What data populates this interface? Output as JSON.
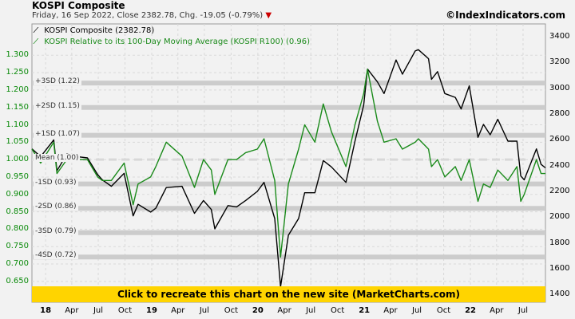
{
  "header": {
    "title": "KOSPI Composite",
    "subtitle": "Friday, 16 Sep 2022, Close 2382.78, Chg. -19.05 (-0.79%)",
    "down_marker": "▼",
    "brand": "©IndexIndicators.com"
  },
  "legend": {
    "item1": "KOSPI Composite (2382.78)",
    "item2": "KOSPI Relative to its 100-Day Moving Average (KOSPI R100) (0.96)"
  },
  "banner": {
    "text": "Click to recreate this chart on the new site (MarketCharts.com)"
  },
  "colors": {
    "kospi": "#000000",
    "ratio": "#1a8a1a",
    "band": "#cccccc",
    "grid": "#d9d9d9",
    "banner": "#ffd400"
  },
  "chart_data": {
    "type": "line",
    "x_range": [
      "2017-11-15",
      "2022-09-16"
    ],
    "x_ticks": [
      {
        "date": "2018-01-01",
        "label": "18",
        "year": true
      },
      {
        "date": "2018-04-01",
        "label": "Apr"
      },
      {
        "date": "2018-07-01",
        "label": "Jul"
      },
      {
        "date": "2018-10-01",
        "label": "Oct"
      },
      {
        "date": "2019-01-01",
        "label": "19",
        "year": true
      },
      {
        "date": "2019-04-01",
        "label": "Apr"
      },
      {
        "date": "2019-07-01",
        "label": "Jul"
      },
      {
        "date": "2019-10-01",
        "label": "Oct"
      },
      {
        "date": "2020-01-01",
        "label": "20",
        "year": true
      },
      {
        "date": "2020-04-01",
        "label": "Apr"
      },
      {
        "date": "2020-07-01",
        "label": "Jul"
      },
      {
        "date": "2020-10-01",
        "label": "Oct"
      },
      {
        "date": "2021-01-01",
        "label": "21",
        "year": true
      },
      {
        "date": "2021-04-01",
        "label": "Apr"
      },
      {
        "date": "2021-07-01",
        "label": "Jul"
      },
      {
        "date": "2021-10-01",
        "label": "Oct"
      },
      {
        "date": "2022-01-01",
        "label": "22",
        "year": true
      },
      {
        "date": "2022-04-01",
        "label": "Apr"
      },
      {
        "date": "2022-07-01",
        "label": "Jul"
      }
    ],
    "left_axis": {
      "ylim": [
        0.59,
        1.39
      ],
      "ticks": [
        "0.650",
        "0.700",
        "0.750",
        "0.800",
        "0.850",
        "0.900",
        "0.950",
        "1.000",
        "1.050",
        "1.100",
        "1.150",
        "1.200",
        "1.250",
        "1.300"
      ]
    },
    "right_axis": {
      "ylim": [
        1340,
        3500
      ],
      "ticks": [
        "1400",
        "1600",
        "1800",
        "2000",
        "2200",
        "2400",
        "2600",
        "2800",
        "3000",
        "3200",
        "3400"
      ]
    },
    "sd_bands": [
      {
        "label": "+3SD (1.22)",
        "value": 1.22
      },
      {
        "label": "+2SD (1.15)",
        "value": 1.15
      },
      {
        "label": "+1SD (1.07)",
        "value": 1.07
      },
      {
        "label": "Mean (1.00)",
        "value": 1.0
      },
      {
        "label": "-1SD (0.93)",
        "value": 0.93
      },
      {
        "label": "-2SD (0.86)",
        "value": 0.86
      },
      {
        "label": "-3SD (0.79)",
        "value": 0.79
      },
      {
        "label": "-4SD (0.72)",
        "value": 0.72
      }
    ],
    "series": [
      {
        "name": "KOSPI Composite (2382.78)",
        "axis": "right",
        "points": [
          [
            "2017-11-15",
            2530
          ],
          [
            "2017-12-15",
            2470
          ],
          [
            "2018-01-29",
            2600
          ],
          [
            "2018-02-09",
            2360
          ],
          [
            "2018-03-15",
            2490
          ],
          [
            "2018-04-20",
            2470
          ],
          [
            "2018-05-25",
            2460
          ],
          [
            "2018-06-29",
            2330
          ],
          [
            "2018-07-15",
            2290
          ],
          [
            "2018-08-15",
            2240
          ],
          [
            "2018-09-28",
            2340
          ],
          [
            "2018-10-29",
            2010
          ],
          [
            "2018-11-15",
            2100
          ],
          [
            "2018-12-28",
            2040
          ],
          [
            "2019-01-15",
            2070
          ],
          [
            "2019-02-20",
            2230
          ],
          [
            "2019-04-15",
            2240
          ],
          [
            "2019-05-28",
            2030
          ],
          [
            "2019-06-28",
            2130
          ],
          [
            "2019-07-25",
            2060
          ],
          [
            "2019-08-06",
            1910
          ],
          [
            "2019-09-20",
            2090
          ],
          [
            "2019-10-20",
            2080
          ],
          [
            "2019-11-20",
            2130
          ],
          [
            "2019-12-30",
            2200
          ],
          [
            "2020-01-22",
            2270
          ],
          [
            "2020-02-28",
            1990
          ],
          [
            "2020-03-19",
            1460
          ],
          [
            "2020-04-15",
            1860
          ],
          [
            "2020-05-20",
            1990
          ],
          [
            "2020-06-10",
            2190
          ],
          [
            "2020-07-15",
            2190
          ],
          [
            "2020-08-13",
            2440
          ],
          [
            "2020-09-10",
            2390
          ],
          [
            "2020-10-30",
            2270
          ],
          [
            "2020-11-30",
            2590
          ],
          [
            "2020-12-30",
            2870
          ],
          [
            "2021-01-12",
            3150
          ],
          [
            "2021-02-15",
            3050
          ],
          [
            "2021-03-10",
            2960
          ],
          [
            "2021-04-20",
            3220
          ],
          [
            "2021-05-12",
            3110
          ],
          [
            "2021-06-25",
            3290
          ],
          [
            "2021-07-06",
            3300
          ],
          [
            "2021-08-10",
            3230
          ],
          [
            "2021-08-20",
            3070
          ],
          [
            "2021-09-10",
            3130
          ],
          [
            "2021-10-05",
            2960
          ],
          [
            "2021-11-10",
            2930
          ],
          [
            "2021-11-30",
            2840
          ],
          [
            "2021-12-28",
            3020
          ],
          [
            "2022-01-27",
            2620
          ],
          [
            "2022-02-15",
            2720
          ],
          [
            "2022-03-10",
            2640
          ],
          [
            "2022-04-05",
            2760
          ],
          [
            "2022-05-10",
            2590
          ],
          [
            "2022-06-10",
            2590
          ],
          [
            "2022-06-23",
            2320
          ],
          [
            "2022-07-05",
            2290
          ],
          [
            "2022-08-16",
            2530
          ],
          [
            "2022-09-01",
            2410
          ],
          [
            "2022-09-16",
            2383
          ]
        ]
      },
      {
        "name": "KOSPI Relative to its 100-Day Moving Average (KOSPI R100) (0.96)",
        "axis": "left",
        "points": [
          [
            "2017-11-15",
            1.03
          ],
          [
            "2017-12-15",
            0.99
          ],
          [
            "2018-01-29",
            1.05
          ],
          [
            "2018-02-09",
            0.96
          ],
          [
            "2018-03-15",
            1.0
          ],
          [
            "2018-04-20",
            1.0
          ],
          [
            "2018-05-25",
            1.0
          ],
          [
            "2018-06-29",
            0.95
          ],
          [
            "2018-07-15",
            0.94
          ],
          [
            "2018-08-15",
            0.94
          ],
          [
            "2018-09-28",
            0.99
          ],
          [
            "2018-10-29",
            0.87
          ],
          [
            "2018-11-15",
            0.93
          ],
          [
            "2018-12-28",
            0.95
          ],
          [
            "2019-01-15",
            0.98
          ],
          [
            "2019-02-20",
            1.05
          ],
          [
            "2019-04-15",
            1.01
          ],
          [
            "2019-05-28",
            0.92
          ],
          [
            "2019-06-28",
            1.0
          ],
          [
            "2019-07-25",
            0.97
          ],
          [
            "2019-08-06",
            0.9
          ],
          [
            "2019-09-20",
            1.0
          ],
          [
            "2019-10-20",
            1.0
          ],
          [
            "2019-11-20",
            1.02
          ],
          [
            "2019-12-30",
            1.03
          ],
          [
            "2020-01-22",
            1.06
          ],
          [
            "2020-02-28",
            0.94
          ],
          [
            "2020-03-19",
            0.72
          ],
          [
            "2020-04-15",
            0.93
          ],
          [
            "2020-05-20",
            1.03
          ],
          [
            "2020-06-10",
            1.1
          ],
          [
            "2020-07-15",
            1.05
          ],
          [
            "2020-08-13",
            1.16
          ],
          [
            "2020-09-10",
            1.08
          ],
          [
            "2020-10-30",
            0.98
          ],
          [
            "2020-11-30",
            1.1
          ],
          [
            "2020-12-30",
            1.19
          ],
          [
            "2021-01-12",
            1.26
          ],
          [
            "2021-02-15",
            1.11
          ],
          [
            "2021-03-10",
            1.05
          ],
          [
            "2021-04-20",
            1.06
          ],
          [
            "2021-05-12",
            1.03
          ],
          [
            "2021-06-25",
            1.05
          ],
          [
            "2021-07-06",
            1.06
          ],
          [
            "2021-08-10",
            1.03
          ],
          [
            "2021-08-20",
            0.98
          ],
          [
            "2021-09-10",
            1.0
          ],
          [
            "2021-10-05",
            0.95
          ],
          [
            "2021-11-10",
            0.98
          ],
          [
            "2021-11-30",
            0.94
          ],
          [
            "2021-12-28",
            1.0
          ],
          [
            "2022-01-27",
            0.88
          ],
          [
            "2022-02-15",
            0.93
          ],
          [
            "2022-03-10",
            0.92
          ],
          [
            "2022-04-05",
            0.97
          ],
          [
            "2022-05-10",
            0.94
          ],
          [
            "2022-06-10",
            0.98
          ],
          [
            "2022-06-23",
            0.88
          ],
          [
            "2022-07-05",
            0.9
          ],
          [
            "2022-08-16",
            1.0
          ],
          [
            "2022-09-01",
            0.96
          ],
          [
            "2022-09-16",
            0.96
          ]
        ]
      }
    ]
  }
}
